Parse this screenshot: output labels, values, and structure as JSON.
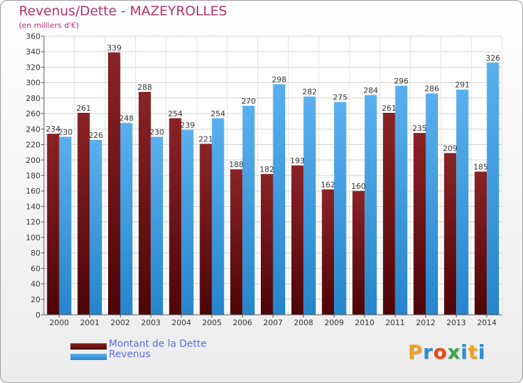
{
  "title": "Revenus/Dette - MAZEYROLLES",
  "subtitle": "(en milliers d'€)",
  "logo": {
    "text": "Proxiti",
    "letters": [
      "P",
      "r",
      "o",
      "x",
      "i",
      "t",
      "i"
    ],
    "colors": [
      "#f0a020",
      "#2d8fd6",
      "#e64a19",
      "#3aa64a",
      "#2d8fd6",
      "#f0a020",
      "#2d8fd6"
    ]
  },
  "colors": {
    "debt": "#7a1418",
    "revenue": "#3a9be0",
    "title": "#b0336a",
    "legend_text": "#5b6fe0"
  },
  "chart_data": {
    "type": "bar",
    "title": "Revenus/Dette - MAZEYROLLES",
    "ylabel": "(en milliers d'€)",
    "categories": [
      "2000",
      "2001",
      "2002",
      "2003",
      "2004",
      "2005",
      "2006",
      "2007",
      "2008",
      "2009",
      "2010",
      "2011",
      "2012",
      "2013",
      "2014"
    ],
    "series": [
      {
        "name": "Montant de la Dette",
        "color": "#7a1418",
        "values": [
          234,
          261,
          339,
          288,
          254,
          221,
          188,
          182,
          193,
          162,
          160,
          261,
          235,
          209,
          185
        ]
      },
      {
        "name": "Revenus",
        "color": "#3a9be0",
        "values": [
          230,
          226,
          248,
          230,
          239,
          254,
          270,
          298,
          282,
          275,
          284,
          296,
          286,
          291,
          326
        ]
      }
    ],
    "ylim": [
      0,
      360
    ],
    "yticks": [
      0,
      20,
      40,
      60,
      80,
      100,
      120,
      140,
      160,
      180,
      200,
      220,
      240,
      260,
      280,
      300,
      320,
      340,
      360
    ],
    "grid": true,
    "legend": "bottom-left"
  }
}
